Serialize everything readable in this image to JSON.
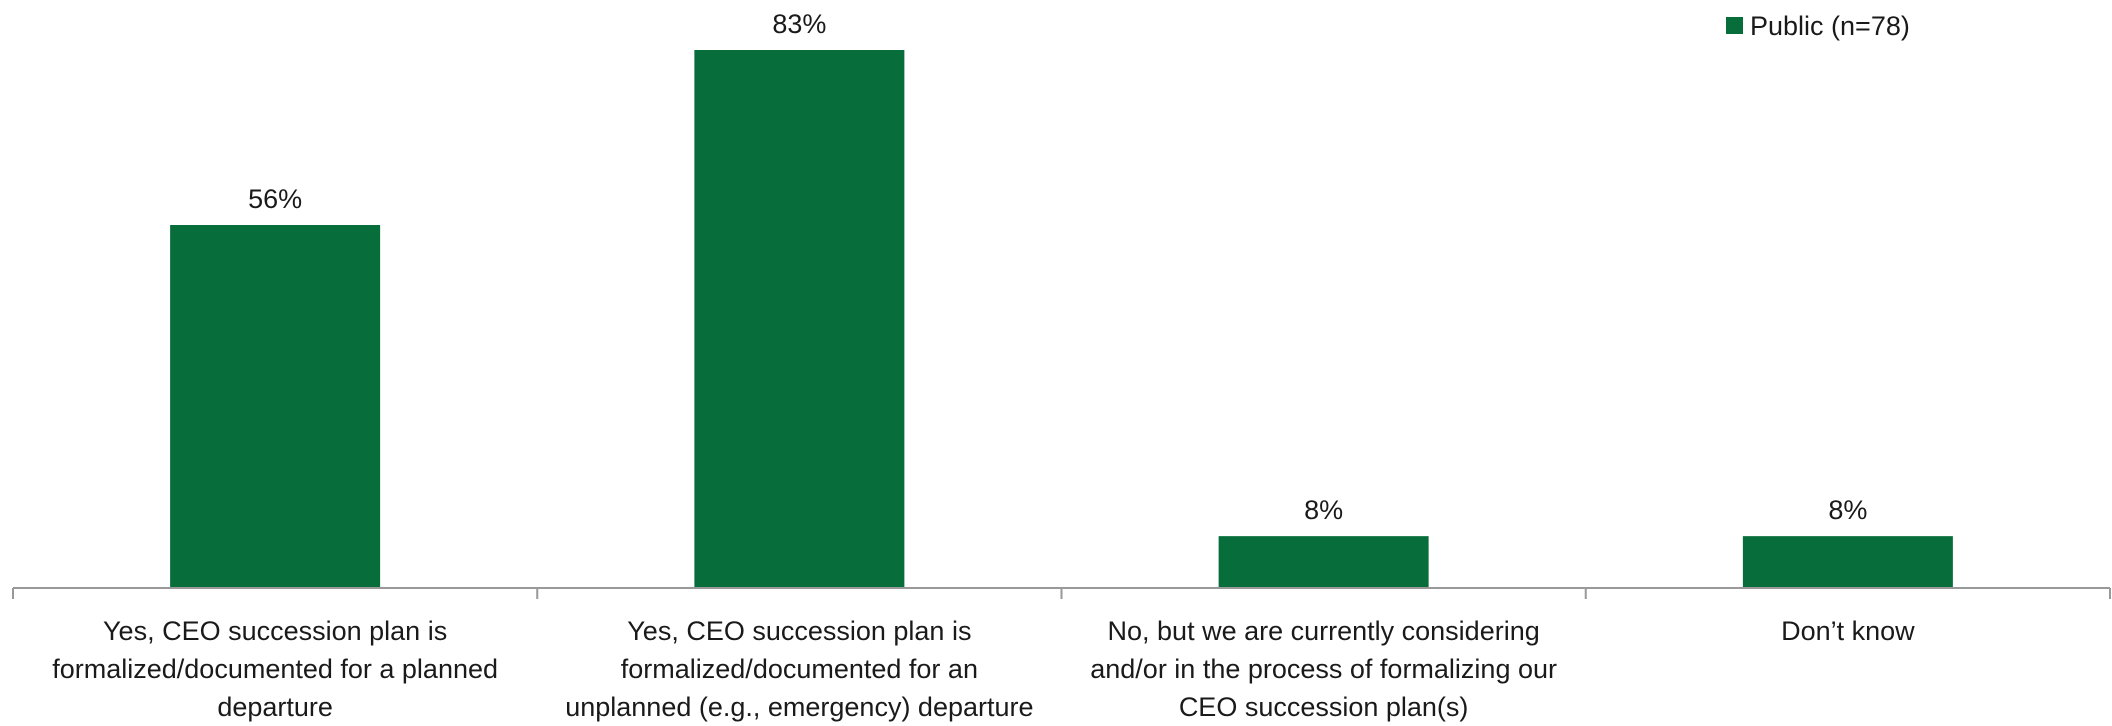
{
  "chart_data": {
    "type": "bar",
    "categories": [
      "Yes, CEO succession plan is formalized/documented for a planned departure",
      "Yes, CEO succession plan is formalized/documented for an unplanned (e.g., emergency) departure",
      "No, but we are currently considering and/or in the process of formalizing our CEO succession plan(s)",
      "Don’t know"
    ],
    "category_lines": [
      [
        "Yes, CEO succession plan is",
        "formalized/documented for a planned",
        "departure"
      ],
      [
        "Yes, CEO succession plan is",
        "formalized/documented for an",
        "unplanned (e.g., emergency) departure"
      ],
      [
        "No, but we are currently considering",
        "and/or in the process of formalizing our",
        "CEO succession plan(s)"
      ],
      [
        "Don’t know"
      ]
    ],
    "series": [
      {
        "name": "Public (n=78)",
        "values": [
          56,
          83,
          8,
          8
        ],
        "labels": [
          "56%",
          "83%",
          "8%",
          "8%"
        ],
        "color": "#066d3b"
      }
    ],
    "ylim": [
      0,
      100
    ],
    "grid": false,
    "legend_position": "top-right"
  }
}
